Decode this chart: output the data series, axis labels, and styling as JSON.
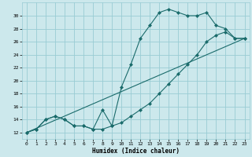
{
  "title": "",
  "xlabel": "Humidex (Indice chaleur)",
  "ylabel": "",
  "bg_color": "#cce8ec",
  "grid_color": "#99ccd4",
  "line_color": "#1a6b6b",
  "xlim": [
    -0.5,
    23.5
  ],
  "ylim": [
    11.0,
    32.0
  ],
  "xticks": [
    0,
    1,
    2,
    3,
    4,
    5,
    6,
    7,
    8,
    9,
    10,
    11,
    12,
    13,
    14,
    15,
    16,
    17,
    18,
    19,
    20,
    21,
    22,
    23
  ],
  "yticks": [
    12,
    14,
    16,
    18,
    20,
    22,
    24,
    26,
    28,
    30
  ],
  "line1_x": [
    0,
    1,
    2,
    3,
    4,
    5,
    6,
    7,
    8,
    9,
    10,
    11,
    12,
    13,
    14,
    15,
    16,
    17,
    18,
    19,
    20,
    21,
    22,
    23
  ],
  "line1_y": [
    12,
    12.5,
    14,
    14.5,
    14,
    13,
    13,
    12.5,
    15.5,
    13,
    19,
    22.5,
    26.5,
    28.5,
    30.5,
    31,
    30.5,
    30,
    30,
    30.5,
    28.5,
    28,
    26.5,
    26.5
  ],
  "line2_x": [
    0,
    1,
    2,
    3,
    4,
    5,
    6,
    7,
    8,
    9,
    10,
    11,
    12,
    13,
    14,
    15,
    16,
    17,
    18,
    19,
    20,
    21,
    22,
    23
  ],
  "line2_y": [
    12,
    12.5,
    14,
    14.5,
    14,
    13,
    13,
    12.5,
    12.5,
    13,
    13.5,
    14.5,
    15.5,
    16.5,
    18,
    19.5,
    21,
    22.5,
    24,
    26,
    27,
    27.5,
    26.5,
    26.5
  ],
  "line3_x": [
    0,
    23
  ],
  "line3_y": [
    12,
    26.5
  ]
}
